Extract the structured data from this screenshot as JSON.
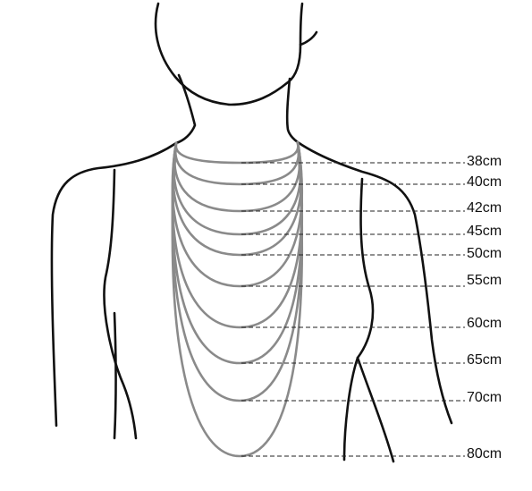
{
  "necklace_sizes": [
    {
      "label": "38cm"
    },
    {
      "label": "40cm"
    },
    {
      "label": "42cm"
    },
    {
      "label": "45cm"
    },
    {
      "label": "50cm"
    },
    {
      "label": "55cm"
    },
    {
      "label": "60cm"
    },
    {
      "label": "65cm"
    },
    {
      "label": "70cm"
    },
    {
      "label": "80cm"
    }
  ],
  "colors": {
    "body_outline": "#111111",
    "chain": "#8a8a8a",
    "guide_line": "#222222",
    "background": "#ffffff"
  }
}
